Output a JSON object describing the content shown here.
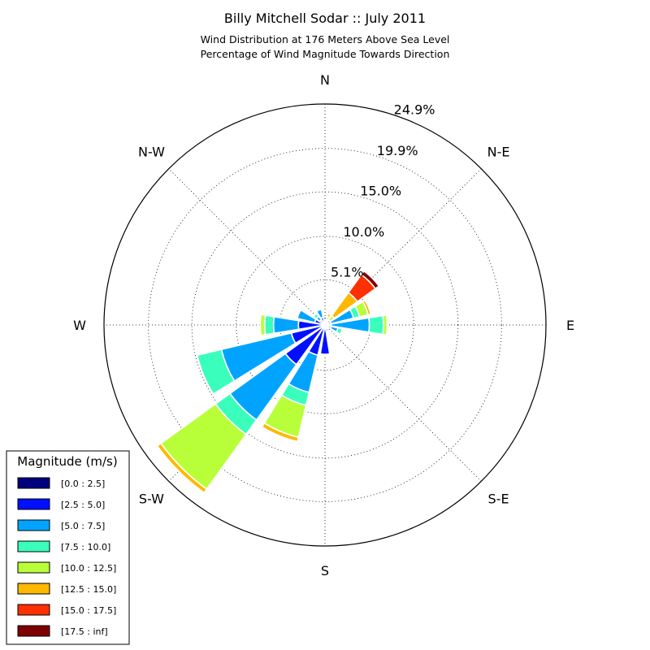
{
  "title": "Billy Mitchell Sodar :: July 2011",
  "subtitle_lines": [
    "Wind Distribution at 176 Meters Above Sea Level",
    "Percentage of Wind Magnitude Towards Direction"
  ],
  "chart_data": {
    "type": "windrose",
    "directions": [
      "N",
      "N-E",
      "E",
      "S-E",
      "S",
      "S-W",
      "W",
      "N-W"
    ],
    "ring_labels": [
      "5.1%",
      "10.0%",
      "15.0%",
      "19.9%",
      "24.9%"
    ],
    "ring_values": [
      5.1,
      10.0,
      15.0,
      19.9,
      24.9
    ],
    "rmax": 24.9,
    "legend_title": "Magnitude (m/s)",
    "bins": [
      {
        "label": "[0.0 : 2.5]",
        "color": "#00007f"
      },
      {
        "label": "[2.5 : 5.0]",
        "color": "#0010ff"
      },
      {
        "label": "[5.0 : 7.5]",
        "color": "#00a4ff"
      },
      {
        "label": "[7.5 : 10.0]",
        "color": "#3affbc"
      },
      {
        "label": "[10.0 : 12.5]",
        "color": "#b8ff3a"
      },
      {
        "label": "[12.5 : 15.0]",
        "color": "#ffb800"
      },
      {
        "label": "[15.0 : 17.5]",
        "color": "#ff3000"
      },
      {
        "label": "[17.5 : inf]",
        "color": "#7f0000"
      }
    ],
    "sectors": [
      {
        "bearing": 0,
        "cumulative": [
          0.6,
          0.9,
          0.9,
          0.9,
          0.9,
          0.9,
          0.9,
          0.9
        ]
      },
      {
        "bearing": 22.5,
        "cumulative": [
          0.3,
          0.6,
          0.6,
          0.6,
          1.0,
          1.3,
          1.3,
          1.3
        ]
      },
      {
        "bearing": 45,
        "cumulative": [
          0.3,
          0.7,
          0.7,
          0.7,
          1.3,
          4.5,
          7.0,
          7.5
        ]
      },
      {
        "bearing": 67.5,
        "cumulative": [
          0.3,
          0.7,
          3.3,
          4.0,
          5.0,
          5.3,
          5.3,
          5.3
        ]
      },
      {
        "bearing": 90,
        "cumulative": [
          0.3,
          0.7,
          5.0,
          6.6,
          7.0,
          7.0,
          7.0,
          7.0
        ]
      },
      {
        "bearing": 112.5,
        "cumulative": [
          0.3,
          0.7,
          1.5,
          2.0,
          2.0,
          2.0,
          2.0,
          2.0
        ]
      },
      {
        "bearing": 135,
        "cumulative": [
          0.3,
          0.5,
          0.5,
          0.5,
          0.5,
          0.5,
          0.5,
          0.5
        ]
      },
      {
        "bearing": 157.5,
        "cumulative": [
          0.3,
          0.7,
          0.7,
          0.7,
          0.7,
          0.7,
          0.7,
          0.7
        ]
      },
      {
        "bearing": 180,
        "cumulative": [
          0.3,
          3.3,
          3.3,
          3.3,
          3.3,
          3.3,
          3.3,
          3.3
        ]
      },
      {
        "bearing": 202.5,
        "cumulative": [
          0.3,
          3.5,
          7.8,
          9.3,
          13.0,
          13.5,
          13.5,
          13.5
        ]
      },
      {
        "bearing": 225,
        "cumulative": [
          0.3,
          5.5,
          13.2,
          15.2,
          22.8,
          23.3,
          23.3,
          23.3
        ]
      },
      {
        "bearing": 247.5,
        "cumulative": [
          0.3,
          3.9,
          12.0,
          14.8,
          14.8,
          14.8,
          14.8,
          14.8
        ]
      },
      {
        "bearing": 270,
        "cumulative": [
          0.3,
          3.0,
          5.8,
          6.8,
          7.3,
          7.3,
          7.3,
          7.3
        ]
      },
      {
        "bearing": 292.5,
        "cumulative": [
          0.3,
          1.2,
          3.2,
          3.2,
          3.2,
          3.2,
          3.2,
          3.2
        ]
      },
      {
        "bearing": 315,
        "cumulative": [
          0.3,
          0.7,
          1.2,
          1.6,
          1.6,
          1.6,
          1.6,
          1.6
        ]
      },
      {
        "bearing": 337.5,
        "cumulative": [
          0.3,
          0.9,
          1.8,
          1.8,
          1.8,
          1.8,
          1.8,
          1.8
        ]
      }
    ]
  }
}
